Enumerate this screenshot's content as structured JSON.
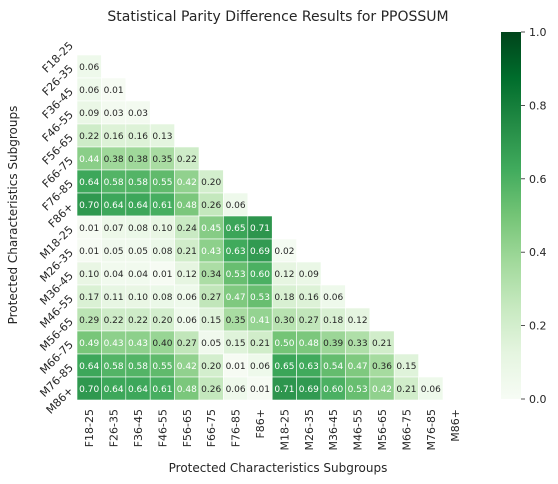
{
  "chart_data": {
    "type": "heatmap",
    "title": "Statistical Parity Difference Results for PPOSSUM",
    "xlabel": "Protected Characteristics Subgroups",
    "ylabel": "Protected Characteristics Subgroups",
    "categories": [
      "F18-25",
      "F26-35",
      "F36-45",
      "F46-55",
      "F56-65",
      "F66-75",
      "F76-85",
      "F86+",
      "M18-25",
      "M26-35",
      "M36-45",
      "M46-55",
      "M56-65",
      "M66-75",
      "M76-85",
      "M86+"
    ],
    "values": [
      [],
      [
        0.06
      ],
      [
        0.06,
        0.01
      ],
      [
        0.09,
        0.03,
        0.03
      ],
      [
        0.22,
        0.16,
        0.16,
        0.13
      ],
      [
        0.44,
        0.38,
        0.38,
        0.35,
        0.22
      ],
      [
        0.64,
        0.58,
        0.58,
        0.55,
        0.42,
        0.2
      ],
      [
        0.7,
        0.64,
        0.64,
        0.61,
        0.48,
        0.26,
        0.06
      ],
      [
        0.01,
        0.07,
        0.08,
        0.1,
        0.24,
        0.45,
        0.65,
        0.71
      ],
      [
        0.01,
        0.05,
        0.05,
        0.08,
        0.21,
        0.43,
        0.63,
        0.69,
        0.02
      ],
      [
        0.1,
        0.04,
        0.04,
        0.01,
        0.12,
        0.34,
        0.53,
        0.6,
        0.12,
        0.09
      ],
      [
        0.17,
        0.11,
        0.1,
        0.08,
        0.06,
        0.27,
        0.47,
        0.53,
        0.18,
        0.16,
        0.06
      ],
      [
        0.29,
        0.22,
        0.22,
        0.2,
        0.06,
        0.15,
        0.35,
        0.41,
        0.3,
        0.27,
        0.18,
        0.12
      ],
      [
        0.49,
        0.43,
        0.43,
        0.4,
        0.27,
        0.05,
        0.15,
        0.21,
        0.5,
        0.48,
        0.39,
        0.33,
        0.21
      ],
      [
        0.64,
        0.58,
        0.58,
        0.55,
        0.42,
        0.2,
        0.01,
        0.06,
        0.65,
        0.63,
        0.54,
        0.47,
        0.36,
        0.15
      ],
      [
        0.7,
        0.64,
        0.64,
        0.61,
        0.48,
        0.26,
        0.06,
        0.01,
        0.71,
        0.69,
        0.6,
        0.53,
        0.42,
        0.21,
        0.06
      ]
    ],
    "colorbar": {
      "range": [
        0,
        1
      ],
      "ticks": [
        "0.0",
        "0.2",
        "0.4",
        "0.6",
        "0.8",
        "1.0"
      ],
      "colormap": "Greens"
    }
  }
}
